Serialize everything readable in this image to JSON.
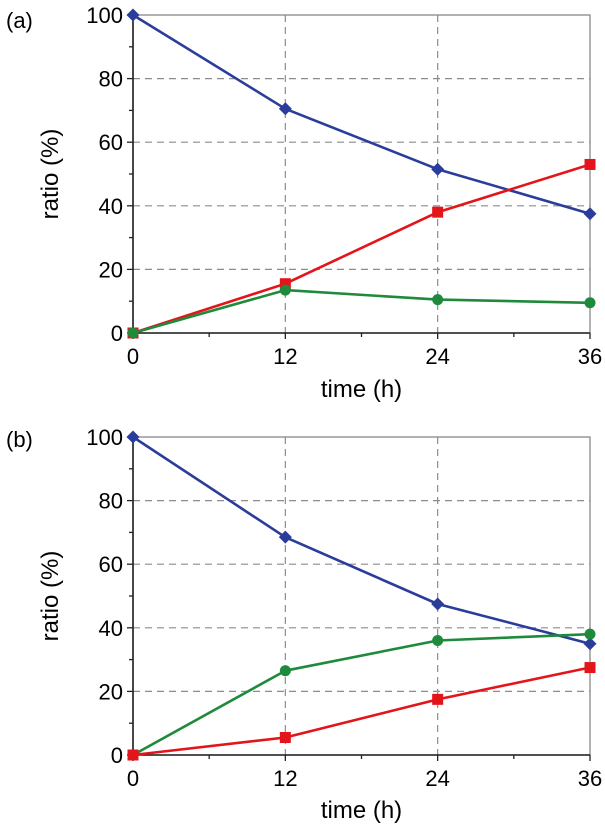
{
  "chart_data": [
    {
      "type": "line",
      "panel_label": "(a)",
      "xlabel": "time (h)",
      "ylabel": "ratio (%)",
      "x": [
        0,
        12,
        24,
        36
      ],
      "xticks": [
        "0",
        "12",
        "24",
        "36"
      ],
      "yticks": [
        "0",
        "20",
        "40",
        "60",
        "80",
        "100"
      ],
      "xlim": [
        0,
        36
      ],
      "ylim": [
        0,
        100
      ],
      "grid": true,
      "series": [
        {
          "name": "blue",
          "color": "#2b3d9b",
          "marker": "diamond",
          "values": [
            100,
            70.5,
            51.5,
            37.5
          ]
        },
        {
          "name": "red",
          "color": "#e3151b",
          "marker": "square",
          "values": [
            0,
            15.5,
            38,
            53
          ]
        },
        {
          "name": "green",
          "color": "#1f8a3b",
          "marker": "circle",
          "values": [
            0,
            13.5,
            10.5,
            9.5
          ]
        }
      ]
    },
    {
      "type": "line",
      "panel_label": "(b)",
      "xlabel": "time (h)",
      "ylabel": "ratio (%)",
      "x": [
        0,
        12,
        24,
        36
      ],
      "xticks": [
        "0",
        "12",
        "24",
        "36"
      ],
      "yticks": [
        "0",
        "20",
        "40",
        "60",
        "80",
        "100"
      ],
      "xlim": [
        0,
        36
      ],
      "ylim": [
        0,
        100
      ],
      "grid": true,
      "series": [
        {
          "name": "blue",
          "color": "#2b3d9b",
          "marker": "diamond",
          "values": [
            100,
            68.5,
            47.5,
            35
          ]
        },
        {
          "name": "green",
          "color": "#1f8a3b",
          "marker": "circle",
          "values": [
            0,
            26.5,
            36,
            38
          ]
        },
        {
          "name": "red",
          "color": "#e3151b",
          "marker": "square",
          "values": [
            0,
            5.5,
            17.5,
            27.5
          ]
        }
      ]
    }
  ]
}
